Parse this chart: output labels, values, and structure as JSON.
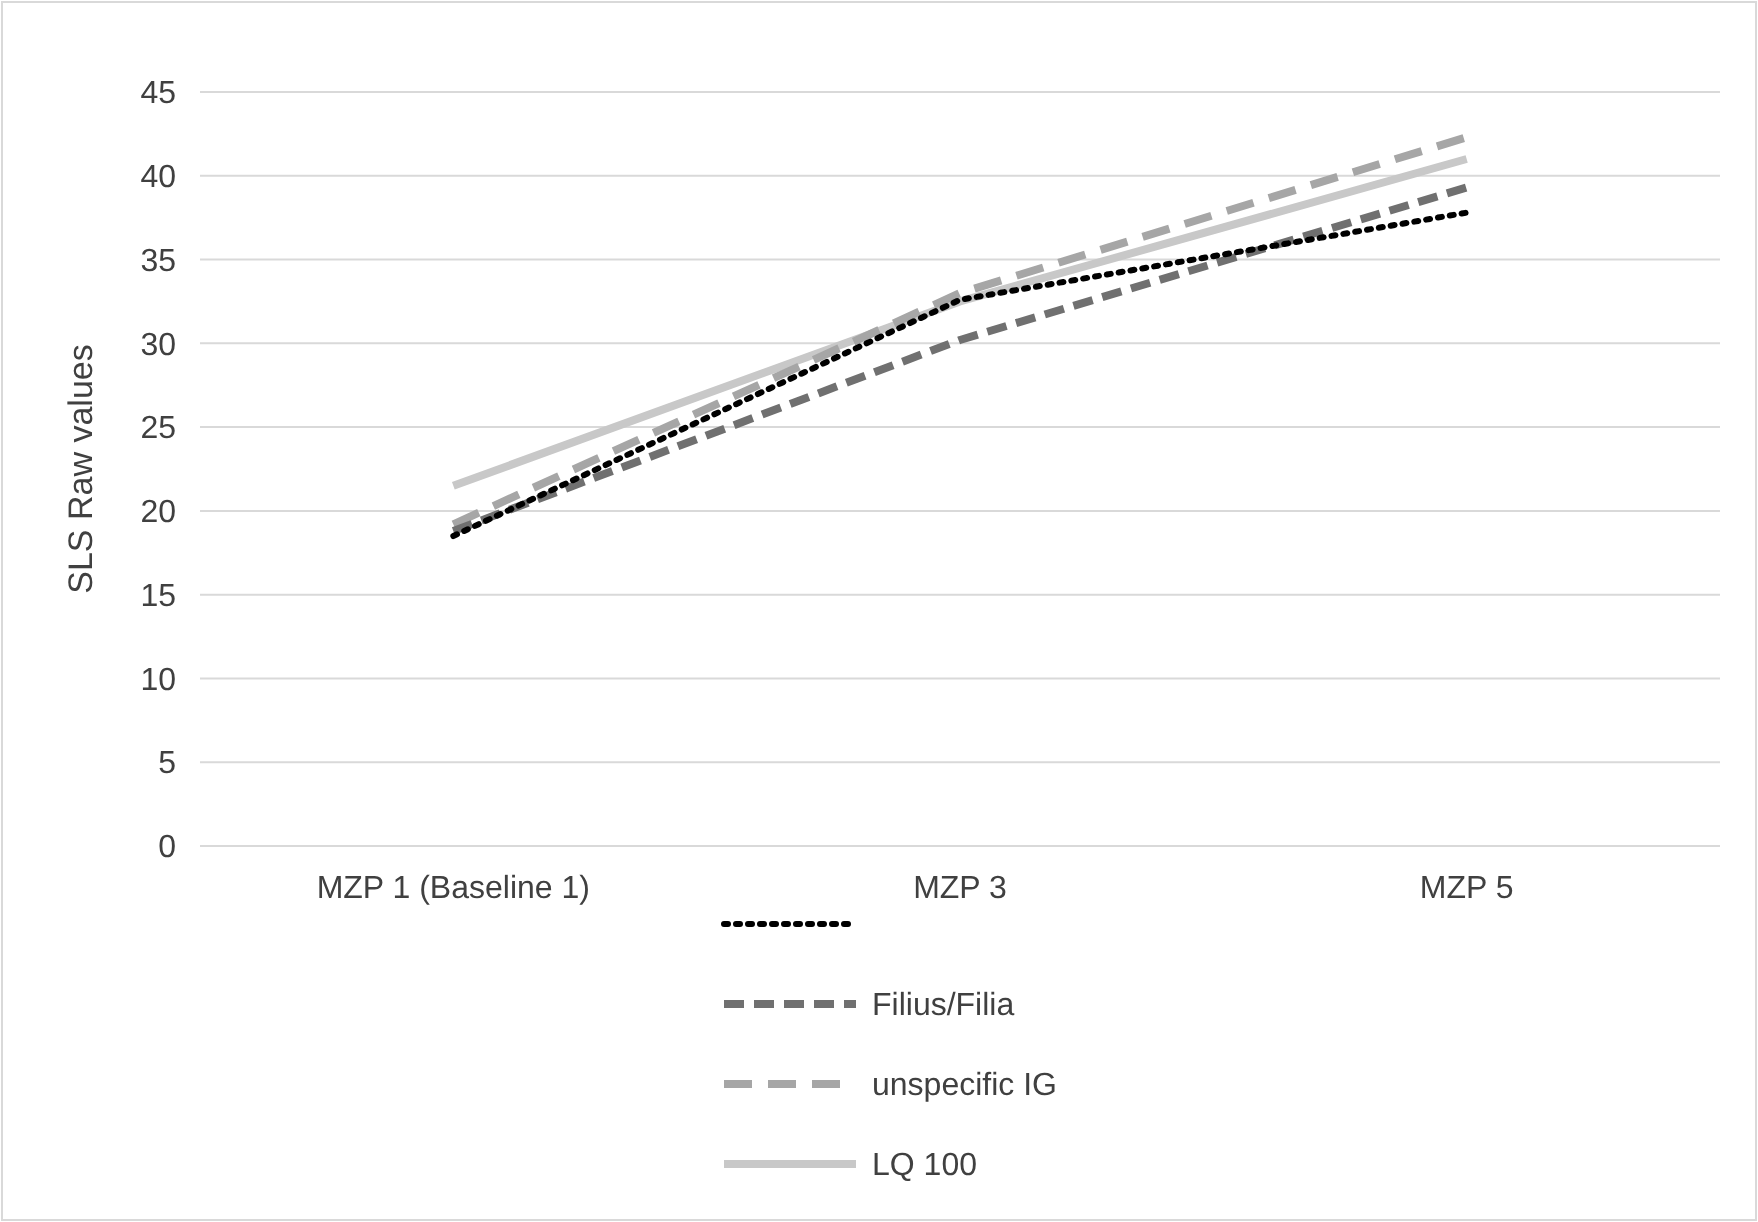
{
  "chart_data": {
    "type": "line",
    "ylabel": "SLS Raw values",
    "categories": [
      "MZP 1 (Baseline 1)",
      "MZP 3",
      "MZP 5"
    ],
    "series": [
      {
        "color": "#000000",
        "line_style": "dotted",
        "values": [
          18.5,
          32.6,
          37.8
        ]
      },
      {
        "name": "Filius/Filia",
        "color": "#707070",
        "line_style": "dashed",
        "values": [
          18.8,
          30.2,
          39.3
        ]
      },
      {
        "name": "unspecific IG",
        "color": "#a6a6a6",
        "line_style": "dashed",
        "values": [
          19.2,
          33,
          42.3
        ]
      },
      {
        "name": "LQ 100",
        "color": "#c8c8c8",
        "line_style": "solid",
        "values": [
          21.5,
          32.5,
          41
        ]
      }
    ],
    "ylim": [
      0,
      45
    ],
    "yticks": [
      0,
      5,
      10,
      15,
      20,
      25,
      30,
      35,
      40,
      45
    ],
    "grid": "y",
    "legend": "bottom",
    "marker": "none"
  }
}
